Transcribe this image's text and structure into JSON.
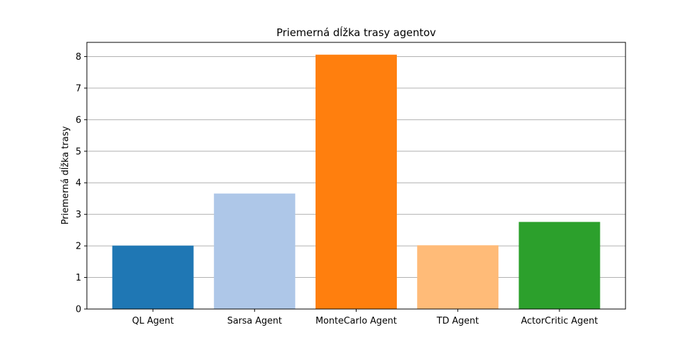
{
  "chart_data": {
    "type": "bar",
    "title": "Priemerná dĺžka trasy agentov",
    "xlabel": "",
    "ylabel": "Priemerná dĺžka trasy",
    "categories": [
      "QL Agent",
      "Sarsa Agent",
      "MonteCarlo Agent",
      "TD Agent",
      "ActorCritic Agent"
    ],
    "values": [
      2.01,
      3.66,
      8.06,
      2.02,
      2.76
    ],
    "colors": [
      "#1f77b4",
      "#aec7e8",
      "#ff7f0e",
      "#ffbb78",
      "#2ca02c"
    ],
    "ylim": [
      0,
      8.45
    ],
    "yticks": [
      0,
      1,
      2,
      3,
      4,
      5,
      6,
      7,
      8
    ],
    "grid": "y"
  }
}
